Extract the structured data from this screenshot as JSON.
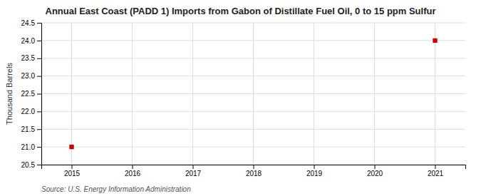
{
  "chart_data": {
    "type": "scatter",
    "title": "Annual East Coast (PADD 1) Imports from Gabon of Distillate Fuel Oil, 0 to 15 ppm Sulfur",
    "ylabel": "Thousand Barrels",
    "source": "Source: U.S. Energy Information Administration",
    "x": [
      2015,
      2021
    ],
    "values": [
      21.0,
      24.0
    ],
    "color": "#cc0000",
    "marker": "square",
    "xlim": [
      2014.5,
      2021.5
    ],
    "ylim": [
      20.5,
      24.5
    ],
    "xticks": [
      2015,
      2016,
      2017,
      2018,
      2019,
      2020,
      2021
    ],
    "yticks": [
      20.5,
      {
        "value": 21.0,
        "label": "21.0"
      },
      21.5,
      {
        "value": 22.0,
        "label": "22.0"
      },
      22.5,
      {
        "value": 23.0,
        "label": "23.0"
      },
      23.5,
      {
        "value": 24.0,
        "label": "24.0"
      },
      24.5
    ],
    "grid": true
  }
}
